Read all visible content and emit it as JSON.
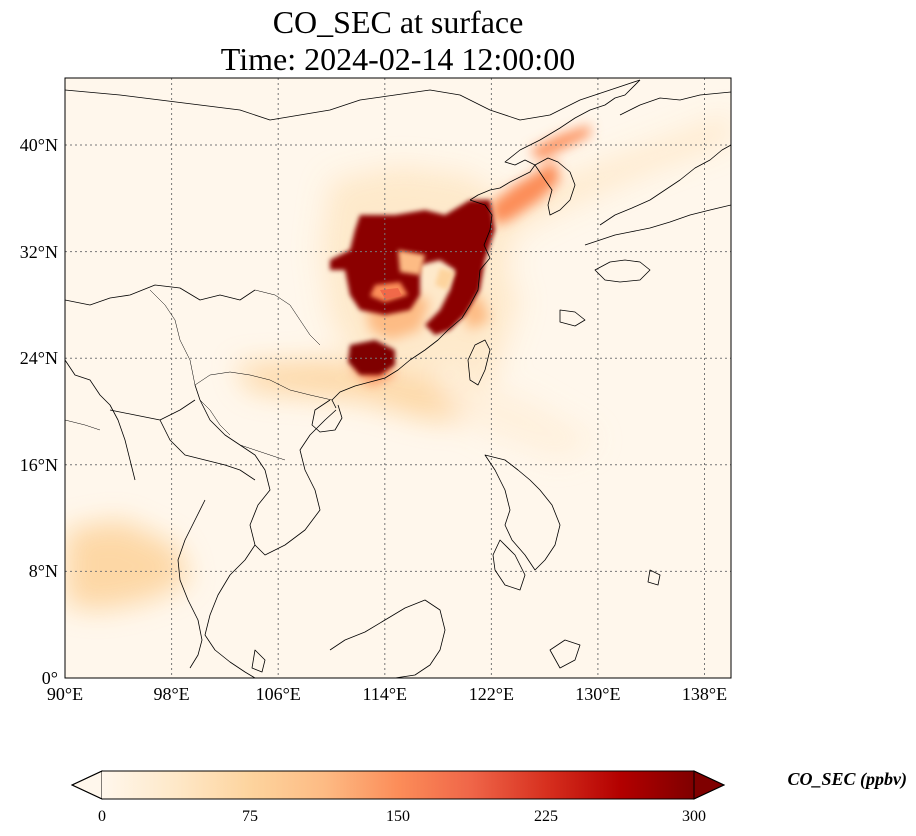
{
  "title": {
    "line1": "CO_SEC at surface",
    "line2": "Time: 2024-02-14 12:00:00"
  },
  "map": {
    "variable": "CO_SEC",
    "level": "surface",
    "lon_range": [
      90,
      140
    ],
    "lat_range": [
      0,
      44
    ],
    "grid": true,
    "grid_style": "dotted"
  },
  "axes": {
    "x_ticks": [
      {
        "value": 90,
        "label": "90°E"
      },
      {
        "value": 98,
        "label": "98°E"
      },
      {
        "value": 106,
        "label": "106°E"
      },
      {
        "value": 114,
        "label": "114°E"
      },
      {
        "value": 122,
        "label": "122°E"
      },
      {
        "value": 130,
        "label": "130°E"
      },
      {
        "value": 138,
        "label": "138°E"
      }
    ],
    "y_ticks": [
      {
        "value": 0,
        "label": "0°"
      },
      {
        "value": 8,
        "label": "8°N"
      },
      {
        "value": 16,
        "label": "16°N"
      },
      {
        "value": 24,
        "label": "24°N"
      },
      {
        "value": 32,
        "label": "32°N"
      },
      {
        "value": 40,
        "label": "40°N"
      }
    ]
  },
  "colorbar": {
    "label": "CO_SEC (ppbv)",
    "min": 0,
    "max": 300,
    "extend": "both",
    "colormap": "OrRd",
    "colors": [
      "#fff7ec",
      "#fee8c8",
      "#fdd49e",
      "#fdbb84",
      "#fc8d59",
      "#ef6548",
      "#d7301f",
      "#b30000",
      "#7f0000"
    ],
    "ticks": [
      {
        "value": 0,
        "label": "0"
      },
      {
        "value": 75,
        "label": "75"
      },
      {
        "value": 150,
        "label": "150"
      },
      {
        "value": 225,
        "label": "225"
      },
      {
        "value": 300,
        "label": "300"
      }
    ]
  }
}
